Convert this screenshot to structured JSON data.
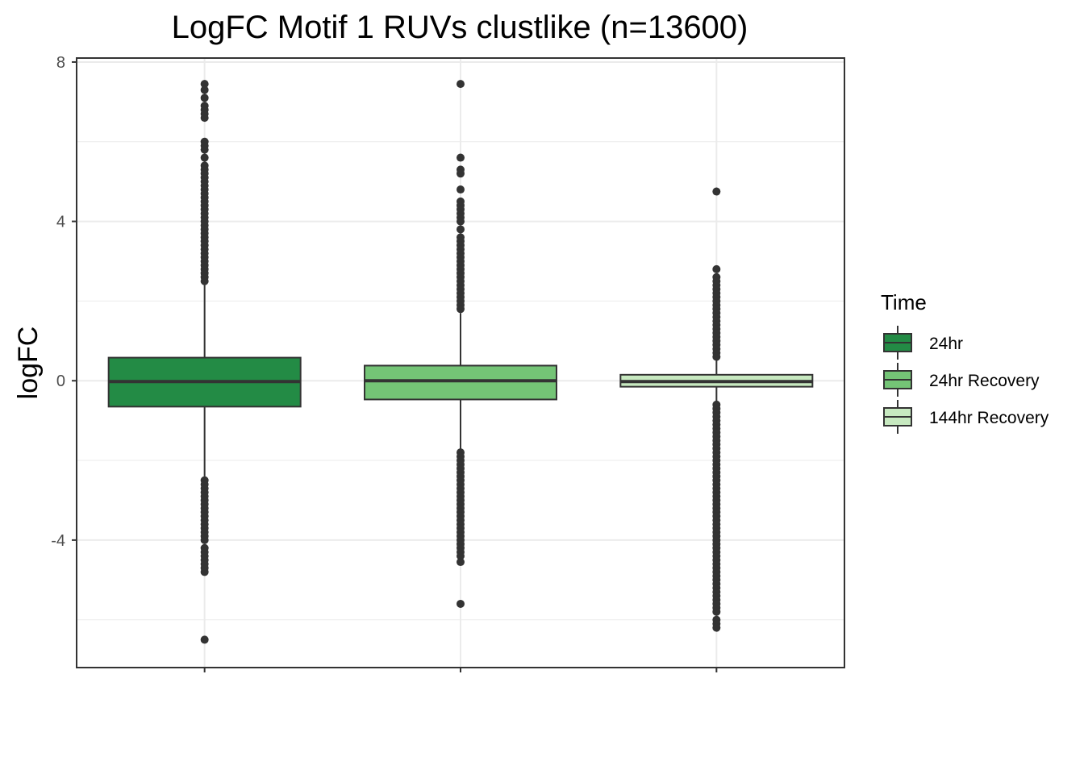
{
  "chart_data": {
    "type": "boxplot",
    "title": "LogFC Motif 1 RUVs clustlike (n=13600)",
    "xlabel": "",
    "ylabel": "logFC",
    "ylim": [
      -7.2,
      8.1
    ],
    "yticks": [
      -4,
      0,
      4,
      8
    ],
    "grid": true,
    "legend": {
      "title": "Time",
      "position": "right"
    },
    "colors": {
      "outlier": "#333333",
      "border": "#333333",
      "grid": "#ebebeb",
      "panel_border": "#333333"
    },
    "series": [
      {
        "name": "24hr",
        "color": "#238b45",
        "q1": -0.65,
        "median": -0.02,
        "q3": 0.58,
        "whisker_low": -2.4,
        "whisker_high": 2.4,
        "outliers": [
          7.45,
          7.3,
          7.1,
          6.9,
          6.8,
          6.7,
          6.6,
          6.0,
          5.9,
          5.8,
          5.6,
          5.4,
          5.3,
          5.2,
          5.1,
          5.0,
          4.9,
          4.8,
          4.7,
          4.6,
          4.5,
          4.4,
          4.3,
          4.2,
          4.1,
          4.0,
          3.9,
          3.8,
          3.7,
          3.6,
          3.5,
          3.4,
          3.3,
          3.2,
          3.1,
          3.0,
          2.9,
          2.8,
          2.7,
          2.6,
          2.5,
          -2.5,
          -2.6,
          -2.7,
          -2.8,
          -2.9,
          -3.0,
          -3.1,
          -3.2,
          -3.3,
          -3.4,
          -3.5,
          -3.6,
          -3.7,
          -3.8,
          -3.9,
          -4.0,
          -4.2,
          -4.3,
          -4.4,
          -4.5,
          -4.6,
          -4.7,
          -4.8,
          -6.5
        ]
      },
      {
        "name": "24hr Recovery",
        "color": "#74c476",
        "q1": -0.47,
        "median": 0.0,
        "q3": 0.38,
        "whisker_low": -1.8,
        "whisker_high": 1.7,
        "outliers": [
          7.45,
          5.6,
          5.3,
          5.2,
          4.8,
          4.5,
          4.4,
          4.3,
          4.2,
          4.1,
          4.0,
          3.8,
          3.6,
          3.5,
          3.4,
          3.3,
          3.2,
          3.1,
          3.0,
          2.9,
          2.8,
          2.7,
          2.6,
          2.5,
          2.4,
          2.3,
          2.2,
          2.1,
          2.0,
          1.9,
          1.8,
          -1.8,
          -1.9,
          -2.0,
          -2.1,
          -2.2,
          -2.3,
          -2.4,
          -2.5,
          -2.6,
          -2.7,
          -2.8,
          -2.9,
          -3.0,
          -3.1,
          -3.2,
          -3.3,
          -3.4,
          -3.5,
          -3.6,
          -3.7,
          -3.8,
          -3.9,
          -4.0,
          -4.1,
          -4.2,
          -4.3,
          -4.4,
          -4.55,
          -5.6
        ]
      },
      {
        "name": "144hr Recovery",
        "color": "#c7e9c0",
        "q1": -0.15,
        "median": -0.02,
        "q3": 0.15,
        "whisker_low": -0.55,
        "whisker_high": 0.55,
        "outliers": [
          4.75,
          2.8,
          2.6,
          2.5,
          2.4,
          2.3,
          2.2,
          2.1,
          2.0,
          1.9,
          1.8,
          1.7,
          1.6,
          1.5,
          1.4,
          1.3,
          1.2,
          1.1,
          1.0,
          0.9,
          0.8,
          0.7,
          0.6,
          -0.6,
          -0.7,
          -0.8,
          -0.9,
          -1.0,
          -1.1,
          -1.2,
          -1.3,
          -1.4,
          -1.5,
          -1.6,
          -1.7,
          -1.8,
          -1.9,
          -2.0,
          -2.1,
          -2.2,
          -2.3,
          -2.4,
          -2.5,
          -2.6,
          -2.7,
          -2.8,
          -2.9,
          -3.0,
          -3.1,
          -3.2,
          -3.3,
          -3.4,
          -3.5,
          -3.6,
          -3.7,
          -3.8,
          -3.9,
          -4.0,
          -4.1,
          -4.2,
          -4.3,
          -4.4,
          -4.5,
          -4.6,
          -4.7,
          -4.8,
          -4.9,
          -5.0,
          -5.1,
          -5.2,
          -5.3,
          -5.4,
          -5.5,
          -5.6,
          -5.7,
          -5.8,
          -6.0,
          -6.1,
          -6.2
        ]
      }
    ]
  }
}
